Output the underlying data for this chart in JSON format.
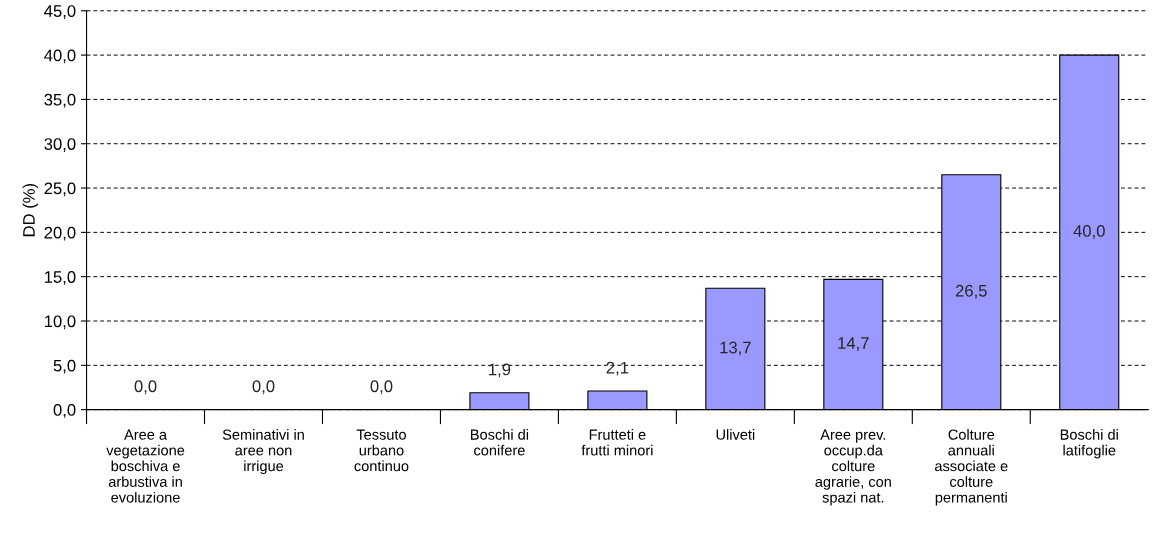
{
  "chart_data": {
    "type": "bar",
    "ylabel": "DD (%)",
    "categories": [
      "Aree a\nvegetazione\nboschiva e\narbustiva in\nevoluzione",
      "Seminativi in\naree non\nirrigue",
      "Tessuto\nurbano\ncontinuo",
      "Boschi di\nconifere",
      "Frutteti e\nfrutti minori",
      "Uliveti",
      "Aree prev.\noccup.da\ncolture\nagrarie, con\nspazi nat.",
      "Colture\nannuali\nassociate e\ncolture\npermanenti",
      "Boschi di\nlatifoglie"
    ],
    "values": [
      0.0,
      0.0,
      0.0,
      1.9,
      2.1,
      13.7,
      14.7,
      26.5,
      40.0
    ],
    "value_labels": [
      "0,0",
      "0,0",
      "0,0",
      "1,9",
      "2,1",
      "13,7",
      "14,7",
      "26,5",
      "40,0"
    ],
    "color": "#9999ff",
    "ylim": [
      0,
      45
    ],
    "yticks": [
      {
        "value": 0,
        "label": "0,0"
      },
      {
        "value": 5,
        "label": "5,0"
      },
      {
        "value": 10,
        "label": "10,0"
      },
      {
        "value": 15,
        "label": "15,0"
      },
      {
        "value": 20,
        "label": "20,0"
      },
      {
        "value": 25,
        "label": "25,0"
      },
      {
        "value": 30,
        "label": "30,0"
      },
      {
        "value": 35,
        "label": "35,0"
      },
      {
        "value": 40,
        "label": "40,0"
      },
      {
        "value": 45,
        "label": "45,0"
      }
    ],
    "grid": "y",
    "legend": false
  }
}
